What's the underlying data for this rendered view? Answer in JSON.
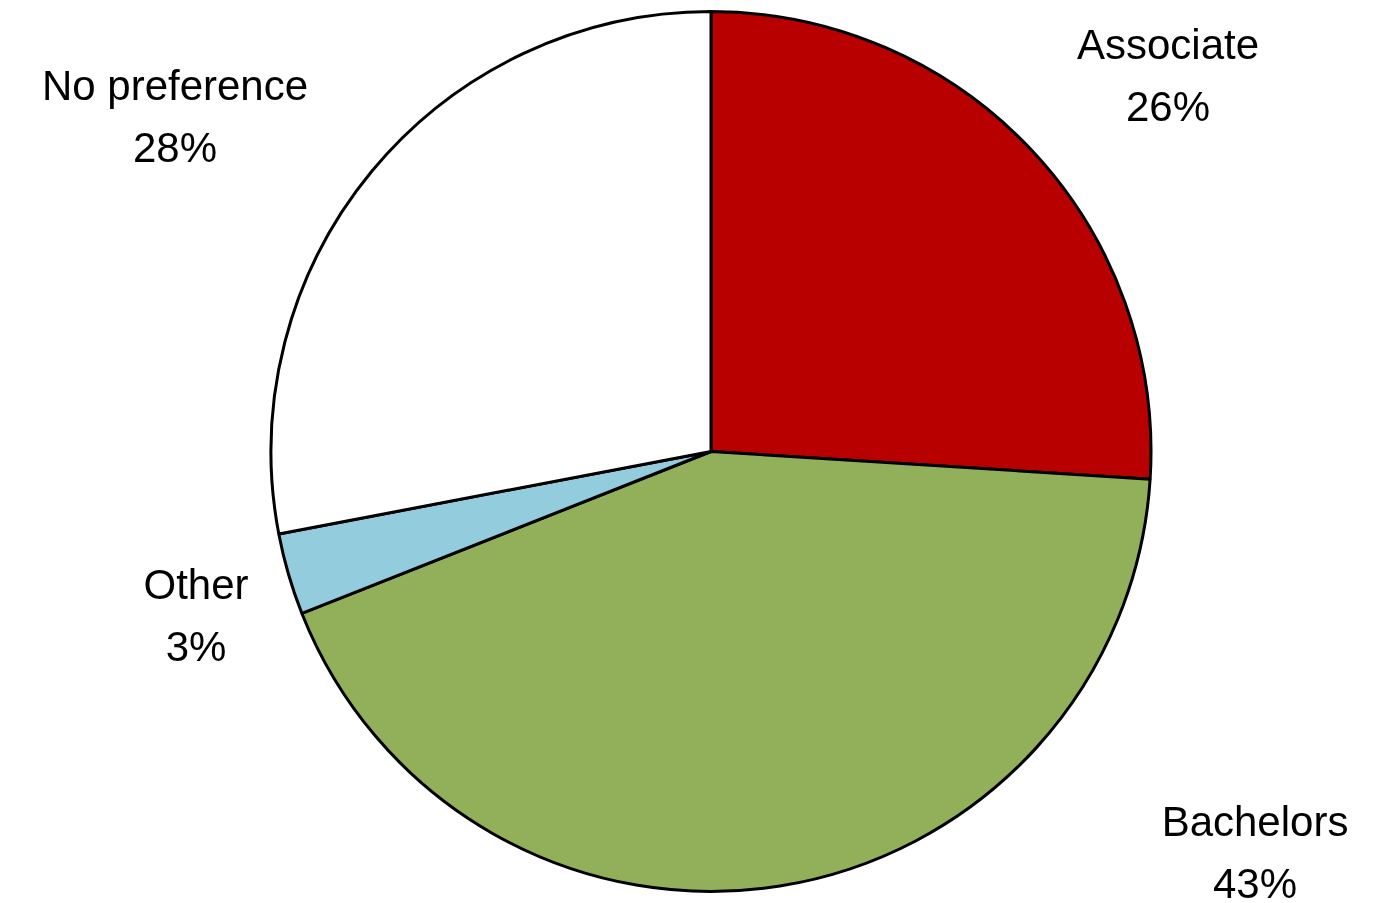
{
  "chart_data": {
    "type": "pie",
    "categories": [
      "Associate",
      "Bachelors",
      "Other",
      "No preference"
    ],
    "values": [
      26,
      43,
      3,
      28
    ],
    "colors": [
      "#b90000",
      "#92b05a",
      "#93ccdd",
      "#ffffff"
    ],
    "value_labels": [
      "26%",
      "43%",
      "3%",
      "28%"
    ],
    "legend": false
  }
}
